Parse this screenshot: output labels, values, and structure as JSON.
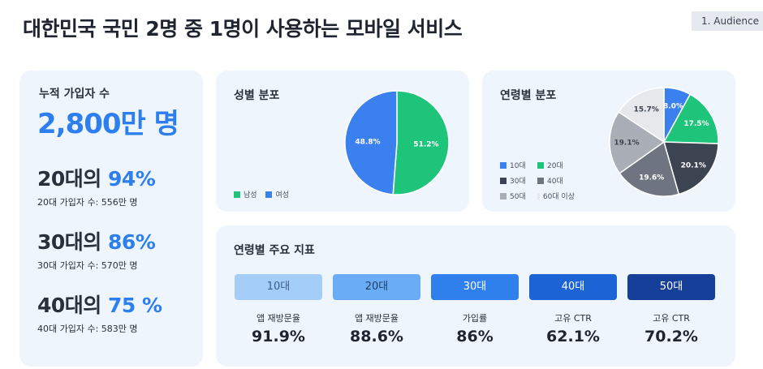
{
  "title": "대한민국 국민 2명 중 1명이 사용하는 모바일 서비스",
  "badge": "1. Audience",
  "summary": {
    "total_label": "누적 가입자 수",
    "total_value": "2,800만 명",
    "ages": [
      {
        "head": "20대의 ",
        "pct": "94%",
        "sub": "20대 가입자 수: 556만 명"
      },
      {
        "head": "30대의 ",
        "pct": "86%",
        "sub": "30대 가입자 수: 570만 명"
      },
      {
        "head": "40대의 ",
        "pct": "75 %",
        "sub": "40대 가입자 수: 583만 명"
      }
    ]
  },
  "gender": {
    "title": "성별 분포",
    "legend": [
      {
        "label": "남성",
        "color": "#1ec47a"
      },
      {
        "label": "여성",
        "color": "#3a80ee"
      }
    ]
  },
  "age": {
    "title": "연령별 분포",
    "legend": [
      {
        "label": "10대",
        "color": "#3a80ee"
      },
      {
        "label": "20대",
        "color": "#1ec47a"
      },
      {
        "label": "30대",
        "color": "#3d4451"
      },
      {
        "label": "40대",
        "color": "#6e7480"
      },
      {
        "label": "50대",
        "color": "#a9aeb7"
      },
      {
        "label": "60대 이상",
        "color": "#e6e8ec"
      }
    ]
  },
  "chart_data": [
    {
      "type": "pie",
      "title": "성별 분포",
      "categories": [
        "남성",
        "여성"
      ],
      "values": [
        51.2,
        48.8
      ],
      "labels": [
        "51.2%",
        "48.8%"
      ],
      "colors": [
        "#1ec47a",
        "#3a80ee"
      ]
    },
    {
      "type": "pie",
      "title": "연령별 분포",
      "categories": [
        "10대",
        "20대",
        "30대",
        "40대",
        "50대",
        "60대 이상"
      ],
      "values": [
        8.0,
        17.5,
        20.1,
        19.6,
        19.1,
        15.7
      ],
      "labels": [
        "8.0%",
        "17.5%",
        "20.1%",
        "19.6%",
        "19.1%",
        "15.7%"
      ],
      "colors": [
        "#3a80ee",
        "#1ec47a",
        "#3d4451",
        "#6e7480",
        "#a9aeb7",
        "#e6e8ec"
      ]
    }
  ],
  "metrics": {
    "title": "연령별 주요 지표",
    "items": [
      {
        "tab": "10대",
        "label": "앱 재방문율",
        "value": "91.9%",
        "bg": "#a4cdf8",
        "fg": "#3d5f85"
      },
      {
        "tab": "20대",
        "label": "앱 재방문율",
        "value": "88.6%",
        "bg": "#6aacf6",
        "fg": "#1f3f66"
      },
      {
        "tab": "30대",
        "label": "가입률",
        "value": "86%",
        "bg": "#2f80ed",
        "fg": "#ffffff"
      },
      {
        "tab": "40대",
        "label": "고유 CTR",
        "value": "62.1%",
        "bg": "#1c63d5",
        "fg": "#ffffff"
      },
      {
        "tab": "50대",
        "label": "고유 CTR",
        "value": "70.2%",
        "bg": "#163f9a",
        "fg": "#ffffff"
      }
    ]
  }
}
